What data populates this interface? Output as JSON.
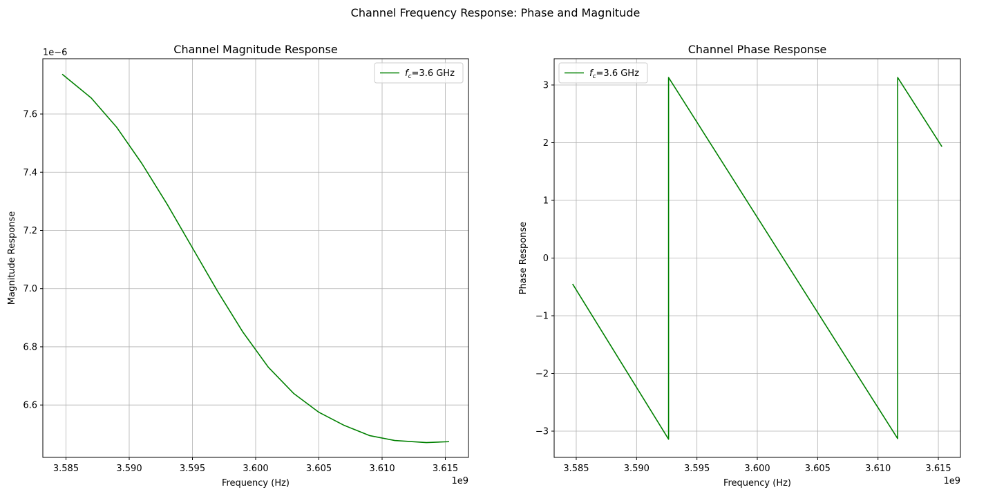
{
  "figure": {
    "suptitle": "Channel Frequency Response: Phase and Magnitude"
  },
  "colors": {
    "line": "#008000",
    "grid": "#b0b0b0",
    "axes": "#000000",
    "background": "#ffffff"
  },
  "chart_data": [
    {
      "type": "line",
      "title": "Channel Magnitude Response",
      "xlabel": "Frequency (Hz)",
      "ylabel": "Magnitude Response",
      "x_offset_label": "1e9",
      "y_offset_label": "1e−6",
      "grid": true,
      "legend_placement": "top-right",
      "xlim": [
        3.58317,
        3.61683
      ],
      "ylim": [
        6.42,
        7.79
      ],
      "xticks": [
        3.585,
        3.59,
        3.595,
        3.6,
        3.605,
        3.61,
        3.615
      ],
      "xtick_labels": [
        "3.585",
        "3.590",
        "3.595",
        "3.600",
        "3.605",
        "3.610",
        "3.615"
      ],
      "yticks": [
        6.6,
        6.8,
        7.0,
        7.2,
        7.4,
        7.6
      ],
      "ytick_labels": [
        "6.6",
        "6.8",
        "7.0",
        "7.2",
        "7.4",
        "7.6"
      ],
      "series": [
        {
          "name": "fc=3.6 GHz",
          "legend_main": "f",
          "legend_sub": "c",
          "legend_rest": "=3.6 GHz",
          "x": [
            3.5847,
            3.587,
            3.589,
            3.591,
            3.593,
            3.595,
            3.597,
            3.599,
            3.601,
            3.603,
            3.605,
            3.607,
            3.609,
            3.611,
            3.6135,
            3.6153
          ],
          "y": [
            7.737,
            7.655,
            7.555,
            7.43,
            7.29,
            7.14,
            6.99,
            6.85,
            6.73,
            6.64,
            6.575,
            6.53,
            6.495,
            6.478,
            6.471,
            6.474
          ]
        }
      ]
    },
    {
      "type": "line",
      "title": "Channel Phase Response",
      "xlabel": "Frequency (Hz)",
      "ylabel": "Phase Response",
      "x_offset_label": "1e9",
      "grid": true,
      "legend_placement": "top-left",
      "xlim": [
        3.58317,
        3.61683
      ],
      "ylim": [
        -3.455,
        3.455
      ],
      "xticks": [
        3.585,
        3.59,
        3.595,
        3.6,
        3.605,
        3.61,
        3.615
      ],
      "xtick_labels": [
        "3.585",
        "3.590",
        "3.595",
        "3.600",
        "3.605",
        "3.610",
        "3.615"
      ],
      "yticks": [
        -3,
        -2,
        -1,
        0,
        1,
        2,
        3
      ],
      "ytick_labels": [
        "−3",
        "−2",
        "−1",
        "0",
        "1",
        "2",
        "3"
      ],
      "series": [
        {
          "name": "fc=3.6 GHz",
          "legend_main": "f",
          "legend_sub": "c",
          "legend_rest": "=3.6 GHz",
          "x": [
            3.5847,
            3.59265,
            3.59265,
            3.61163,
            3.61163,
            3.6153
          ],
          "y": [
            -0.45,
            -3.14,
            3.13,
            -3.13,
            3.13,
            1.93
          ]
        }
      ]
    }
  ]
}
